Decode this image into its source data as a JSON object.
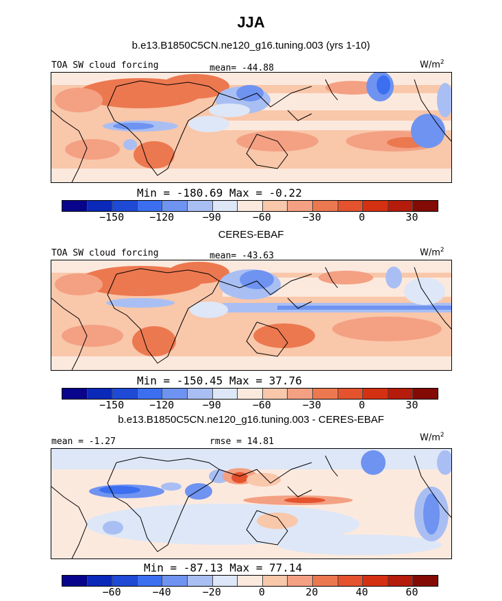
{
  "figure": {
    "title": "JJA",
    "units": "W/m",
    "units_exp": "2"
  },
  "colors": {
    "palette": [
      "#08058c",
      "#0b29b9",
      "#1f4ad6",
      "#3b6ff0",
      "#6f93f1",
      "#a9bff3",
      "#dde7f7",
      "#fce9de",
      "#f9c7aa",
      "#f4a083",
      "#ec7850",
      "#e4532e",
      "#d43112",
      "#b51c0b",
      "#840a05"
    ]
  },
  "panels": [
    {
      "title": "b.e13.B1850C5CN.ne120_g16.tuning.003 (yrs 1-10)",
      "left_label": "TOA SW cloud forcing",
      "center_label": "mean= -44.88",
      "min_max": "Min = -180.69 Max =  -0.22",
      "ticks": [
        "-150",
        "-120",
        "-90",
        "-60",
        "-30",
        "0",
        "30"
      ]
    },
    {
      "title": "CERES-EBAF",
      "left_label": "TOA SW cloud forcing",
      "center_label": "mean= -43.63",
      "min_max": "Min = -150.45 Max =  37.76",
      "ticks": [
        "-150",
        "-120",
        "-90",
        "-60",
        "-30",
        "0",
        "30"
      ]
    },
    {
      "title": "b.e13.B1850C5CN.ne120_g16.tuning.003 - CERES-EBAF",
      "left_label": "mean =  -1.27",
      "center_label": "rmse =  14.81",
      "min_max": "Min = -87.13 Max =  77.14",
      "ticks": [
        "-60",
        "-40",
        "-20",
        "0",
        "20",
        "40",
        "60"
      ]
    }
  ],
  "chart_data": [
    {
      "type": "heatmap",
      "title": "b.e13.B1850C5CN.ne120_g16.tuning.003 (yrs 1-10)",
      "variable": "TOA SW cloud forcing",
      "units": "W/m2",
      "mean": -44.88,
      "min": -180.69,
      "max": -0.22,
      "colorbar_levels": [
        -180,
        -165,
        -150,
        -135,
        -120,
        -105,
        -90,
        -75,
        -60,
        -45,
        -30,
        -15,
        0,
        15,
        30,
        45
      ],
      "colorbar_tick_labels": [
        -150,
        -120,
        -90,
        -60,
        -30,
        0,
        30
      ]
    },
    {
      "type": "heatmap",
      "title": "CERES-EBAF",
      "variable": "TOA SW cloud forcing",
      "units": "W/m2",
      "mean": -43.63,
      "min": -150.45,
      "max": 37.76,
      "colorbar_levels": [
        -180,
        -165,
        -150,
        -135,
        -120,
        -105,
        -90,
        -75,
        -60,
        -45,
        -30,
        -15,
        0,
        15,
        30,
        45
      ],
      "colorbar_tick_labels": [
        -150,
        -120,
        -90,
        -60,
        -30,
        0,
        30
      ]
    },
    {
      "type": "heatmap",
      "title": "b.e13.B1850C5CN.ne120_g16.tuning.003 - CERES-EBAF",
      "units": "W/m2",
      "mean": -1.27,
      "rmse": 14.81,
      "min": -87.13,
      "max": 77.14,
      "colorbar_levels": [
        -80,
        -70,
        -60,
        -50,
        -40,
        -30,
        -20,
        -10,
        0,
        10,
        20,
        30,
        40,
        50,
        60,
        70,
        80
      ],
      "colorbar_tick_labels": [
        -60,
        -40,
        -20,
        0,
        20,
        40,
        60
      ]
    }
  ]
}
